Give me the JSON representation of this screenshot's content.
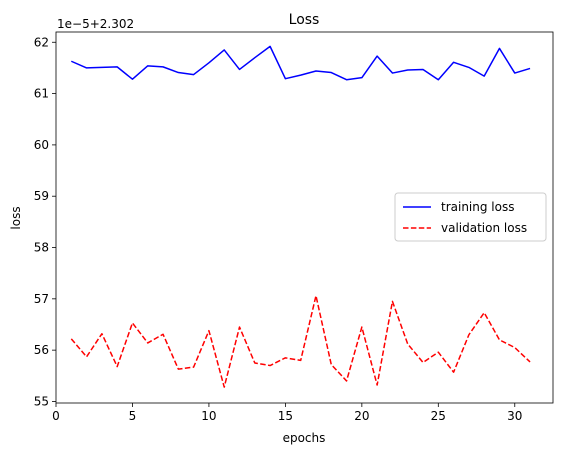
{
  "chart_data": {
    "type": "line",
    "title": "Loss",
    "xlabel": "epochs",
    "ylabel": "loss",
    "offset_label": "1e−5+2.302",
    "xlim": [
      0,
      32.5
    ],
    "ylim": [
      54.97,
      62.2
    ],
    "x_ticks": [
      0,
      5,
      10,
      15,
      20,
      25,
      30
    ],
    "y_ticks": [
      55,
      56,
      57,
      58,
      59,
      60,
      61,
      62
    ],
    "legend_position": "center-right",
    "x": [
      1,
      2,
      3,
      4,
      5,
      6,
      7,
      8,
      9,
      10,
      11,
      12,
      13,
      14,
      15,
      16,
      17,
      18,
      19,
      20,
      21,
      22,
      23,
      24,
      25,
      26,
      27,
      28,
      29,
      30,
      31
    ],
    "series": [
      {
        "name": "training loss",
        "color": "#0000ff",
        "style": "solid",
        "values": [
          61.63,
          61.5,
          61.51,
          61.52,
          61.28,
          61.54,
          61.52,
          61.41,
          61.37,
          61.6,
          61.85,
          61.47,
          61.7,
          61.92,
          61.29,
          61.36,
          61.44,
          61.41,
          61.27,
          61.31,
          61.73,
          61.4,
          61.46,
          61.47,
          61.27,
          61.61,
          61.51,
          61.34,
          61.88,
          61.4,
          61.49
        ]
      },
      {
        "name": "validation loss",
        "color": "#ff0000",
        "style": "dashed",
        "values": [
          56.22,
          55.87,
          56.32,
          55.68,
          56.53,
          56.14,
          56.31,
          55.63,
          55.67,
          56.38,
          55.28,
          56.45,
          55.75,
          55.7,
          55.85,
          55.8,
          57.06,
          55.72,
          55.4,
          56.45,
          55.32,
          56.95,
          56.12,
          55.76,
          55.96,
          55.57,
          56.3,
          56.73,
          56.2,
          56.05,
          55.77
        ]
      }
    ]
  }
}
